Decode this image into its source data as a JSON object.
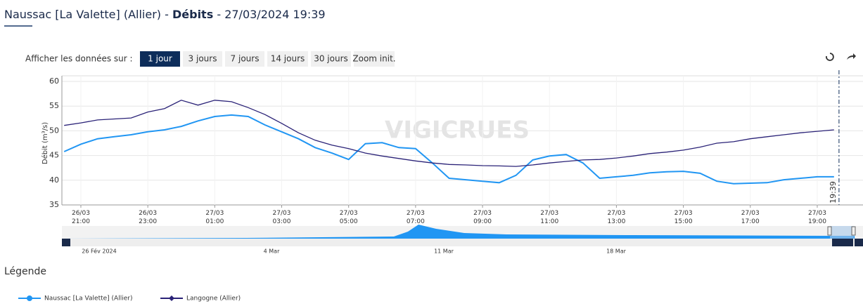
{
  "header": {
    "station": "Naussac [La Valette] (Allier)",
    "separator": " - ",
    "measure": "Débits",
    "separator2": " - ",
    "datetime": "27/03/2024 19:39"
  },
  "toolbar": {
    "label": "Afficher les données sur :",
    "buttons": [
      "1 jour",
      "3 jours",
      "7 jours",
      "14 jours",
      "30 jours",
      "Zoom init."
    ],
    "active": 0
  },
  "watermark": "VIGICRUES",
  "chart_data": {
    "type": "line",
    "ylabel": "Débit (m³/s)",
    "x": [
      "26/03 20:30",
      "26/03 21:00",
      "26/03 21:30",
      "26/03 22:00",
      "26/03 22:30",
      "26/03 23:00",
      "26/03 23:30",
      "27/03 00:00",
      "27/03 00:30",
      "27/03 01:00",
      "27/03 01:30",
      "27/03 02:00",
      "27/03 02:30",
      "27/03 03:00",
      "27/03 03:30",
      "27/03 04:00",
      "27/03 04:30",
      "27/03 05:00",
      "27/03 05:30",
      "27/03 06:00",
      "27/03 06:30",
      "27/03 07:00",
      "27/03 07:30",
      "27/03 08:00",
      "27/03 08:30",
      "27/03 09:00",
      "27/03 09:30",
      "27/03 10:00",
      "27/03 10:30",
      "27/03 11:00",
      "27/03 11:30",
      "27/03 12:00",
      "27/03 12:30",
      "27/03 13:00",
      "27/03 13:30",
      "27/03 14:00",
      "27/03 14:30",
      "27/03 15:00",
      "27/03 15:30",
      "27/03 16:00",
      "27/03 16:30",
      "27/03 17:00",
      "27/03 17:30",
      "27/03 18:00",
      "27/03 18:30",
      "27/03 19:00",
      "27/03 19:30"
    ],
    "series": [
      {
        "name": "Naussac [La Valette] (Allier)",
        "color": "#2196f3",
        "marker": "circle",
        "values": [
          45.8,
          47.3,
          48.4,
          48.8,
          49.2,
          49.8,
          50.2,
          50.9,
          52,
          52.9,
          53.2,
          52.9,
          51.2,
          49.8,
          48.4,
          46.6,
          45.5,
          44.2,
          47.4,
          47.6,
          46.6,
          46.4,
          43.5,
          40.4,
          40.1,
          39.8,
          39.5,
          41,
          44.1,
          44.9,
          45.2,
          43.5,
          40.4,
          40.7,
          41,
          41.5,
          41.7,
          41.8,
          41.4,
          39.8,
          39.3,
          39.4,
          39.5,
          40.1,
          40.4,
          40.7,
          40.7
        ]
      },
      {
        "name": "Langogne (Allier)",
        "color": "#2a2277",
        "marker": "diamond",
        "values": [
          51.1,
          51.6,
          52.2,
          52.4,
          52.6,
          53.8,
          54.5,
          56.2,
          55.2,
          56.2,
          55.9,
          54.7,
          53.3,
          51.5,
          49.6,
          48.1,
          47.1,
          46.4,
          45.5,
          44.9,
          44.4,
          43.9,
          43.5,
          43.2,
          43.1,
          42.95,
          42.9,
          42.8,
          43.1,
          43.5,
          43.8,
          44.1,
          44.2,
          44.5,
          44.9,
          45.4,
          45.7,
          46.1,
          46.7,
          47.5,
          47.8,
          48.4,
          48.8,
          49.2,
          49.6,
          49.9,
          50.2
        ]
      }
    ],
    "xlim": [
      "26/03 20:26",
      "27/03 20:22"
    ],
    "xticks": [
      "26/03 21:00",
      "26/03 23:00",
      "27/03 01:00",
      "27/03 03:00",
      "27/03 05:00",
      "27/03 07:00",
      "27/03 09:00",
      "27/03 11:00",
      "27/03 13:00",
      "27/03 15:00",
      "27/03 17:00",
      "27/03 19:00"
    ],
    "ylim": [
      35,
      60
    ],
    "yticks": [
      35,
      40,
      45,
      50,
      55,
      60
    ],
    "grid": true,
    "now_marker": {
      "x": "27/03 19:39",
      "label": "19:39"
    },
    "navigator_labels": [
      "26 Fév 2024",
      "4 Mar",
      "11 Mar",
      "18 Mar"
    ]
  },
  "legend": {
    "title": "Légende"
  }
}
